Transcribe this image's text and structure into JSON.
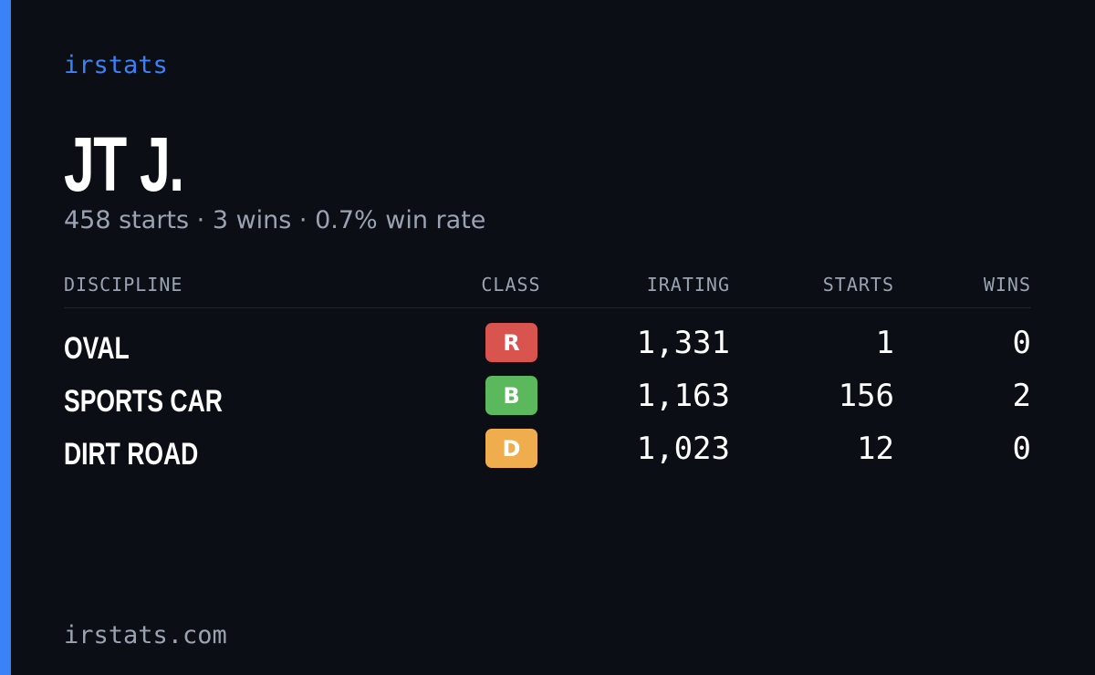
{
  "header": {
    "brand": "irstats",
    "name": "JT J.",
    "summary": "458 starts · 3 wins · 0.7% win rate"
  },
  "table": {
    "columns": [
      "DISCIPLINE",
      "CLASS",
      "IRATING",
      "STARTS",
      "WINS"
    ],
    "rows": [
      {
        "discipline": "OVAL",
        "class": "R",
        "class_color": "#d9534f",
        "irating": "1,331",
        "starts": "1",
        "wins": "0"
      },
      {
        "discipline": "SPORTS CAR",
        "class": "B",
        "class_color": "#5cb85c",
        "irating": "1,163",
        "starts": "156",
        "wins": "2"
      },
      {
        "discipline": "DIRT ROAD",
        "class": "D",
        "class_color": "#f0ad4e",
        "irating": "1,023",
        "starts": "12",
        "wins": "0"
      }
    ]
  },
  "footer": {
    "url": "irstats.com"
  }
}
